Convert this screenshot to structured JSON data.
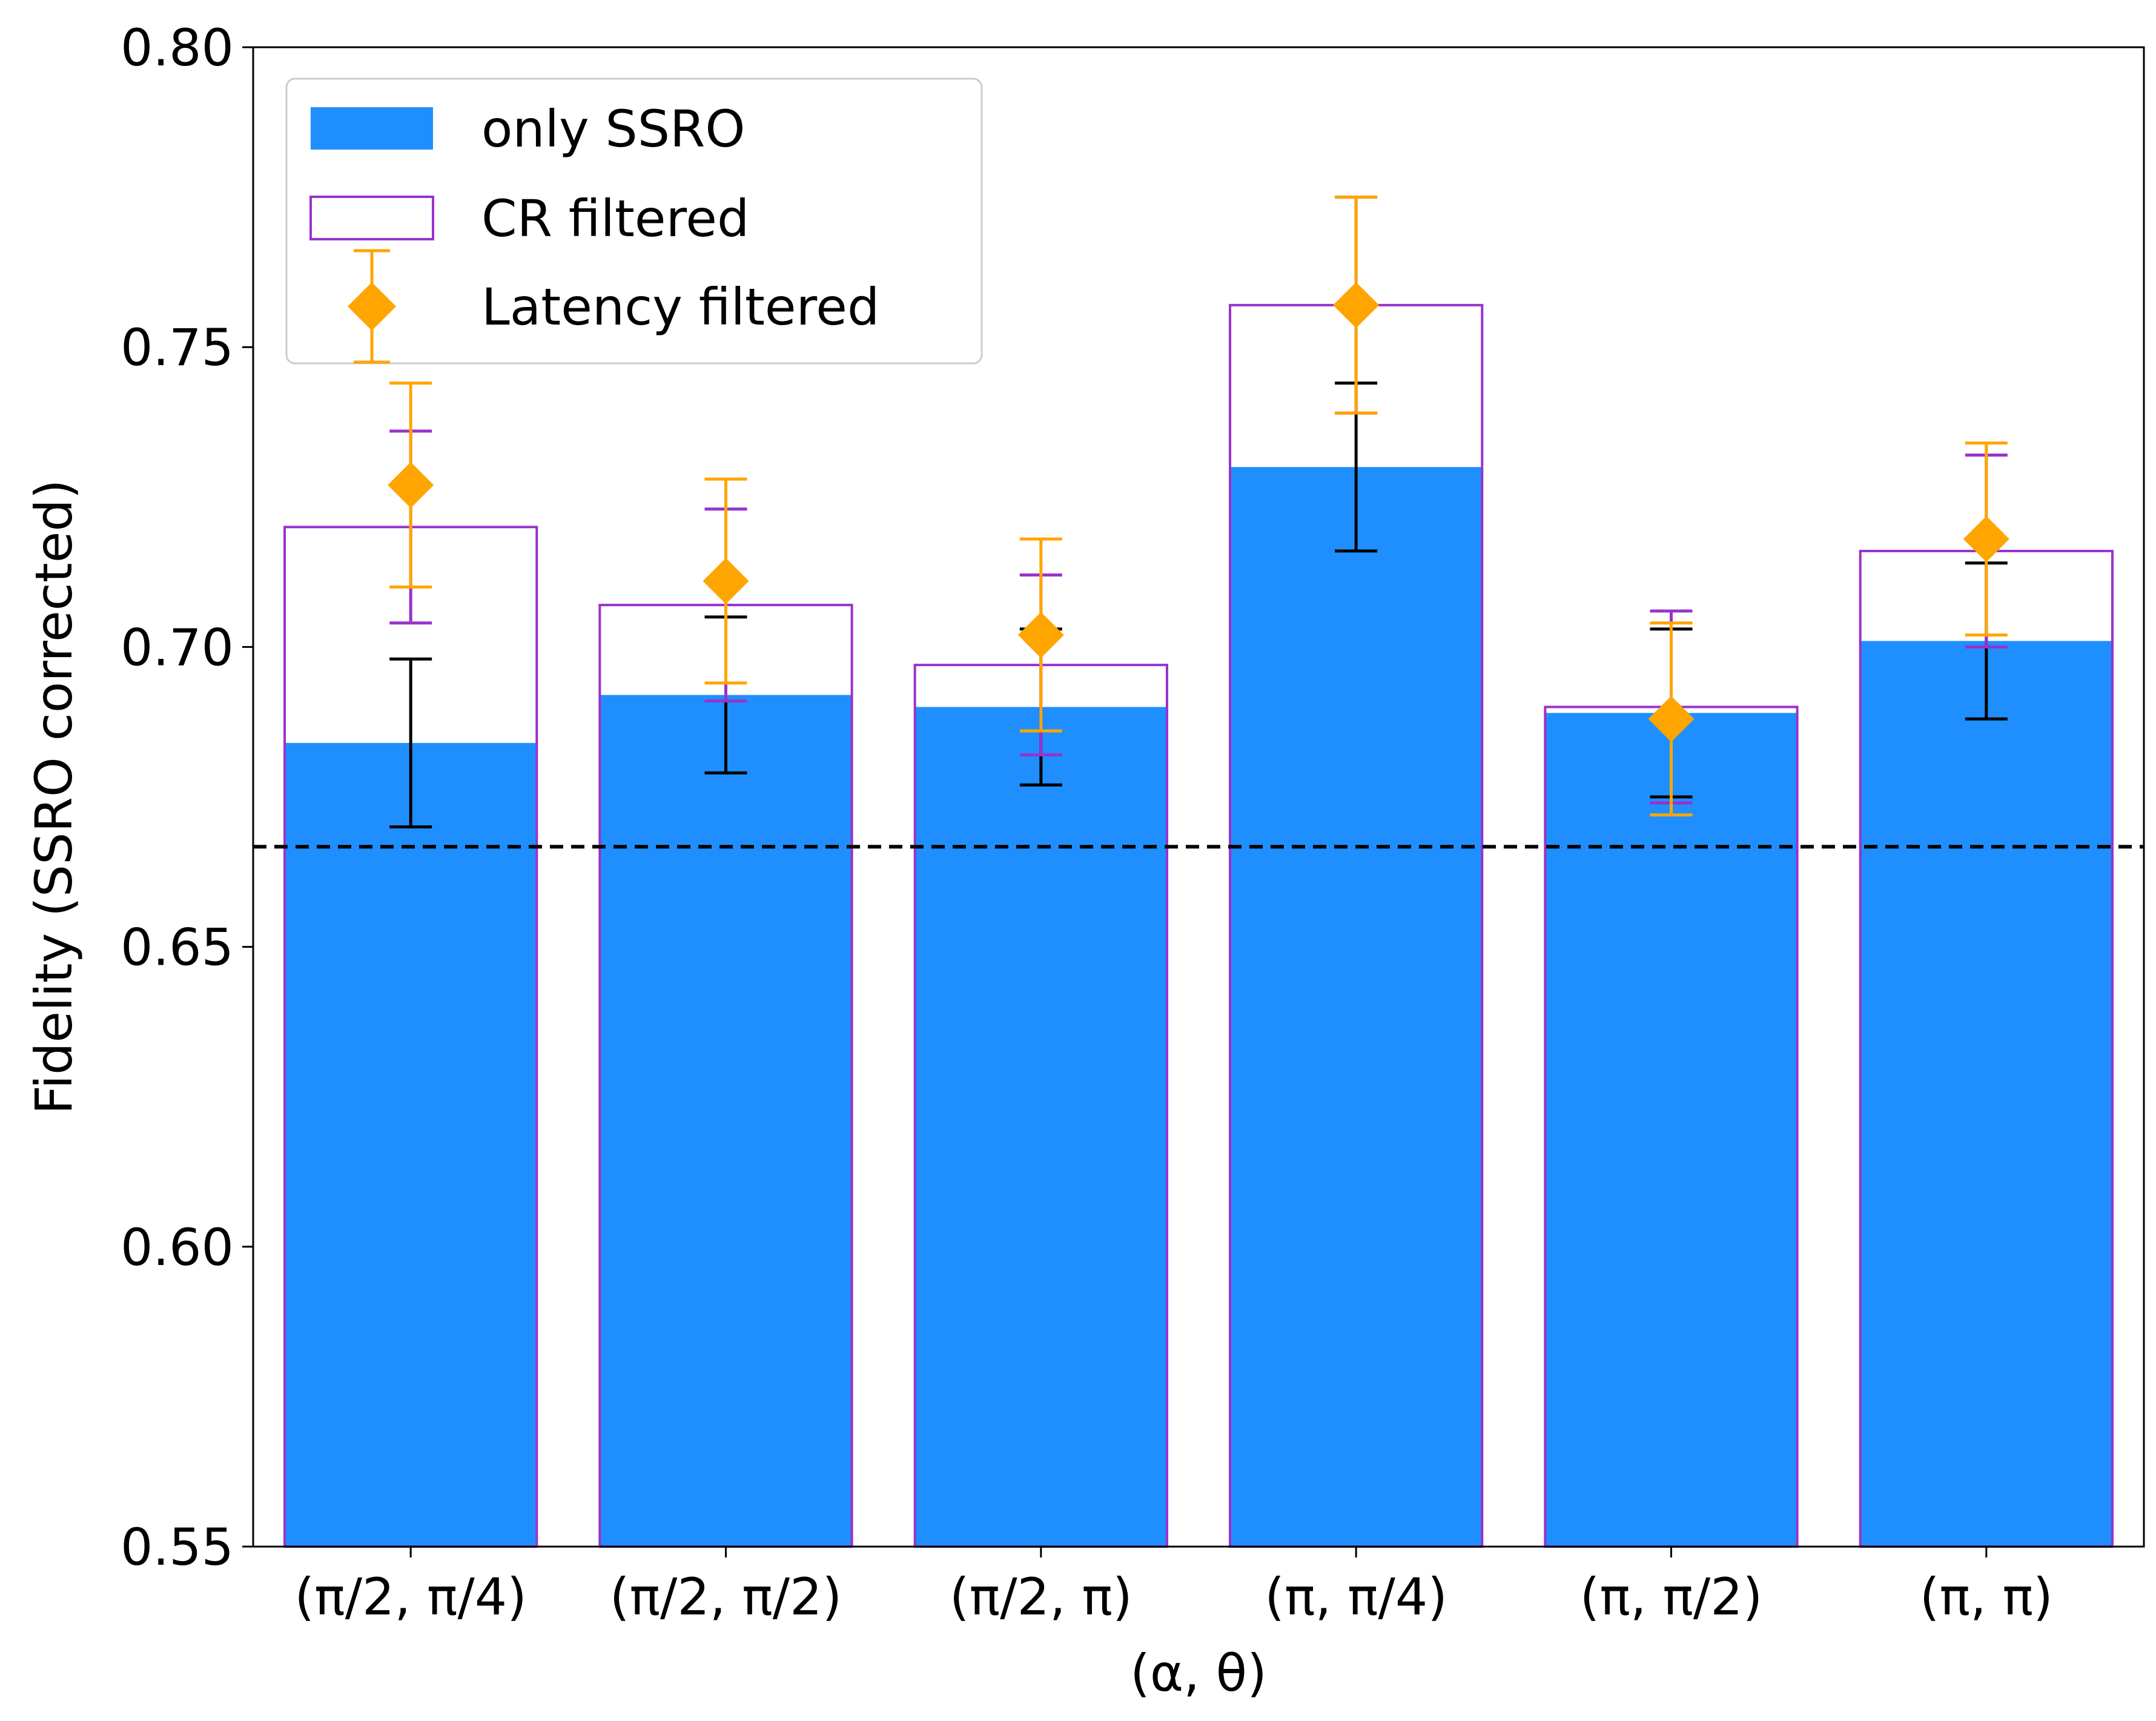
{
  "chart_data": {
    "type": "bar",
    "xlabel": "(α, θ)",
    "ylabel": "Fidelity (SSRO corrected)",
    "ylim": [
      0.55,
      0.8
    ],
    "yticks": [
      "0.55",
      "0.60",
      "0.65",
      "0.70",
      "0.75",
      "0.80"
    ],
    "categories": [
      "(π/2, π/4)",
      "(π/2, π/2)",
      "(π/2, π)",
      "(π, π/4)",
      "(π, π/2)",
      "(π, π)"
    ],
    "reference_line": {
      "y": 0.6667,
      "style": "dashed",
      "color": "#000000"
    },
    "legend_position": "top-left",
    "series": [
      {
        "name": "only SSRO",
        "kind": "bar-filled",
        "color": "#1f8fff",
        "values": [
          0.684,
          0.692,
          0.69,
          0.73,
          0.689,
          0.701
        ],
        "errors": [
          0.014,
          0.013,
          0.013,
          0.014,
          0.014,
          0.013
        ],
        "error_color": "#000000"
      },
      {
        "name": "CR filtered",
        "kind": "bar-outline",
        "color": "#9932cc",
        "values": [
          0.72,
          0.707,
          0.697,
          0.757,
          0.69,
          0.716
        ],
        "errors": [
          0.016,
          0.016,
          0.015,
          0.018,
          0.016,
          0.016
        ],
        "error_color": "#9932cc"
      },
      {
        "name": "Latency filtered",
        "kind": "diamond-marker",
        "color": "#ffa500",
        "values": [
          0.727,
          0.711,
          0.702,
          0.757,
          0.688,
          0.718
        ],
        "errors": [
          0.017,
          0.017,
          0.016,
          0.018,
          0.016,
          0.016
        ],
        "error_color": "#ffa500"
      }
    ]
  }
}
